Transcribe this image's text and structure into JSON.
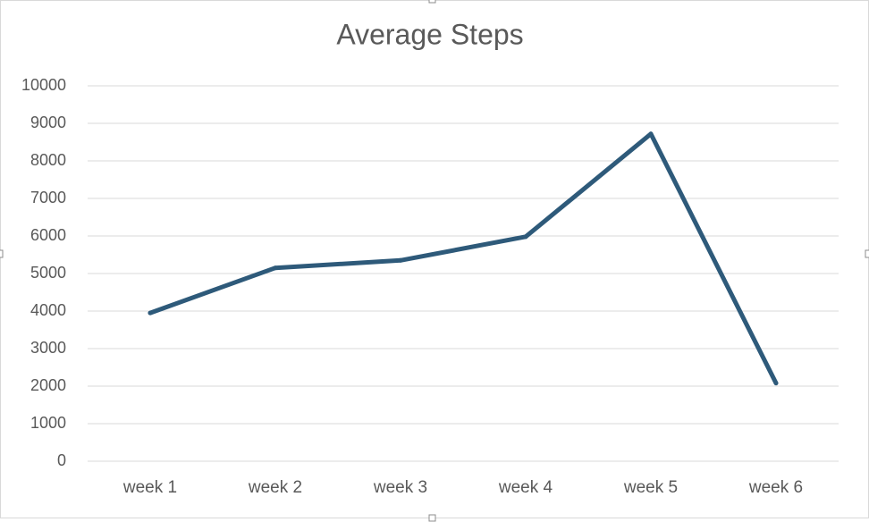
{
  "chart_data": {
    "type": "line",
    "title": "Average Steps",
    "categories": [
      "week 1",
      "week 2",
      "week 3",
      "week 4",
      "week 5",
      "week 6"
    ],
    "series": [
      {
        "values": [
          3950,
          5150,
          5350,
          5980,
          8720,
          2080
        ]
      }
    ],
    "ylim": [
      0,
      10000
    ],
    "yticks": [
      "0",
      "1000",
      "2000",
      "3000",
      "4000",
      "5000",
      "6000",
      "7000",
      "8000",
      "9000",
      "10000"
    ],
    "grid": true,
    "legend": "none",
    "line_color": "#2e5a7a"
  }
}
